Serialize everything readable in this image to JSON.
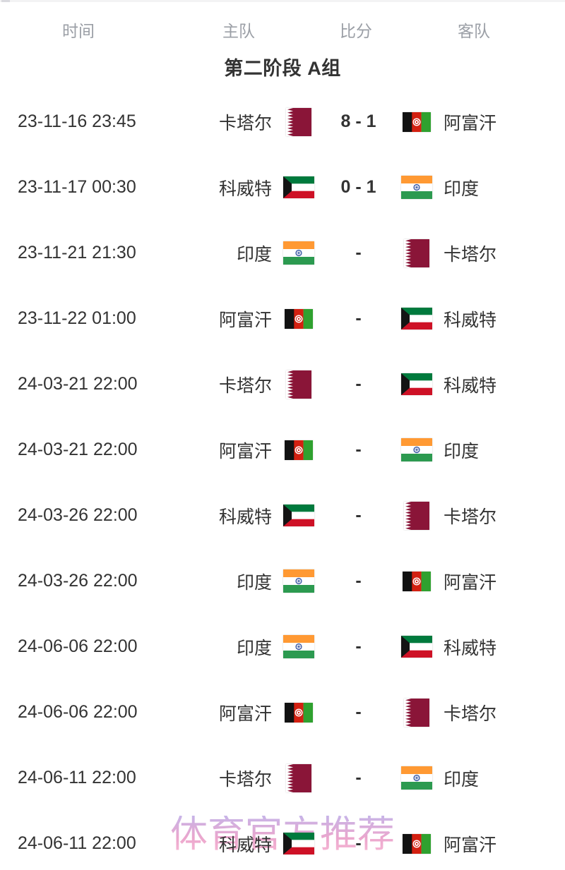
{
  "table": {
    "headers": [
      "时间",
      "主队",
      "比分",
      "客队"
    ],
    "group_title": "第二阶段 A组",
    "rows": [
      {
        "time": "23-11-16 23:45",
        "home": {
          "name": "卡塔尔",
          "flag": "qatar"
        },
        "score": "8 - 1",
        "away": {
          "name": "阿富汗",
          "flag": "afghanistan"
        }
      },
      {
        "time": "23-11-17 00:30",
        "home": {
          "name": "科威特",
          "flag": "kuwait"
        },
        "score": "0 - 1",
        "away": {
          "name": "印度",
          "flag": "india"
        }
      },
      {
        "time": "23-11-21 21:30",
        "home": {
          "name": "印度",
          "flag": "india"
        },
        "score": "-",
        "away": {
          "name": "卡塔尔",
          "flag": "qatar"
        }
      },
      {
        "time": "23-11-22 01:00",
        "home": {
          "name": "阿富汗",
          "flag": "afghanistan"
        },
        "score": "-",
        "away": {
          "name": "科威特",
          "flag": "kuwait"
        }
      },
      {
        "time": "24-03-21 22:00",
        "home": {
          "name": "卡塔尔",
          "flag": "qatar"
        },
        "score": "-",
        "away": {
          "name": "科威特",
          "flag": "kuwait"
        }
      },
      {
        "time": "24-03-21 22:00",
        "home": {
          "name": "阿富汗",
          "flag": "afghanistan"
        },
        "score": "-",
        "away": {
          "name": "印度",
          "flag": "india"
        }
      },
      {
        "time": "24-03-26 22:00",
        "home": {
          "name": "科威特",
          "flag": "kuwait"
        },
        "score": "-",
        "away": {
          "name": "卡塔尔",
          "flag": "qatar"
        }
      },
      {
        "time": "24-03-26 22:00",
        "home": {
          "name": "印度",
          "flag": "india"
        },
        "score": "-",
        "away": {
          "name": "阿富汗",
          "flag": "afghanistan"
        }
      },
      {
        "time": "24-06-06 22:00",
        "home": {
          "name": "印度",
          "flag": "india"
        },
        "score": "-",
        "away": {
          "name": "科威特",
          "flag": "kuwait"
        }
      },
      {
        "time": "24-06-06 22:00",
        "home": {
          "name": "阿富汗",
          "flag": "afghanistan"
        },
        "score": "-",
        "away": {
          "name": "卡塔尔",
          "flag": "qatar"
        }
      },
      {
        "time": "24-06-11 22:00",
        "home": {
          "name": "卡塔尔",
          "flag": "qatar"
        },
        "score": "-",
        "away": {
          "name": "印度",
          "flag": "india"
        }
      },
      {
        "time": "24-06-11 22:00",
        "home": {
          "name": "科威特",
          "flag": "kuwait"
        },
        "score": "-",
        "away": {
          "name": "阿富汗",
          "flag": "afghanistan"
        }
      }
    ]
  },
  "watermark": "体育官方推荐",
  "colors": {
    "text_primary": "#333333",
    "text_header": "#9b9fa6",
    "qatar_maroon": "#8a1538",
    "kuwait_green": "#007a3d",
    "kuwait_red": "#ce1126",
    "kuwait_black": "#141414",
    "afghan_black": "#121212",
    "afghan_red": "#d32011",
    "afghan_green": "#2fa12f",
    "india_saffron": "#ff9933",
    "india_green": "#2c9a50",
    "india_navy": "#3050a0",
    "watermark_violet": "#c7b4e8",
    "watermark_pink": "#f0a3cb"
  }
}
